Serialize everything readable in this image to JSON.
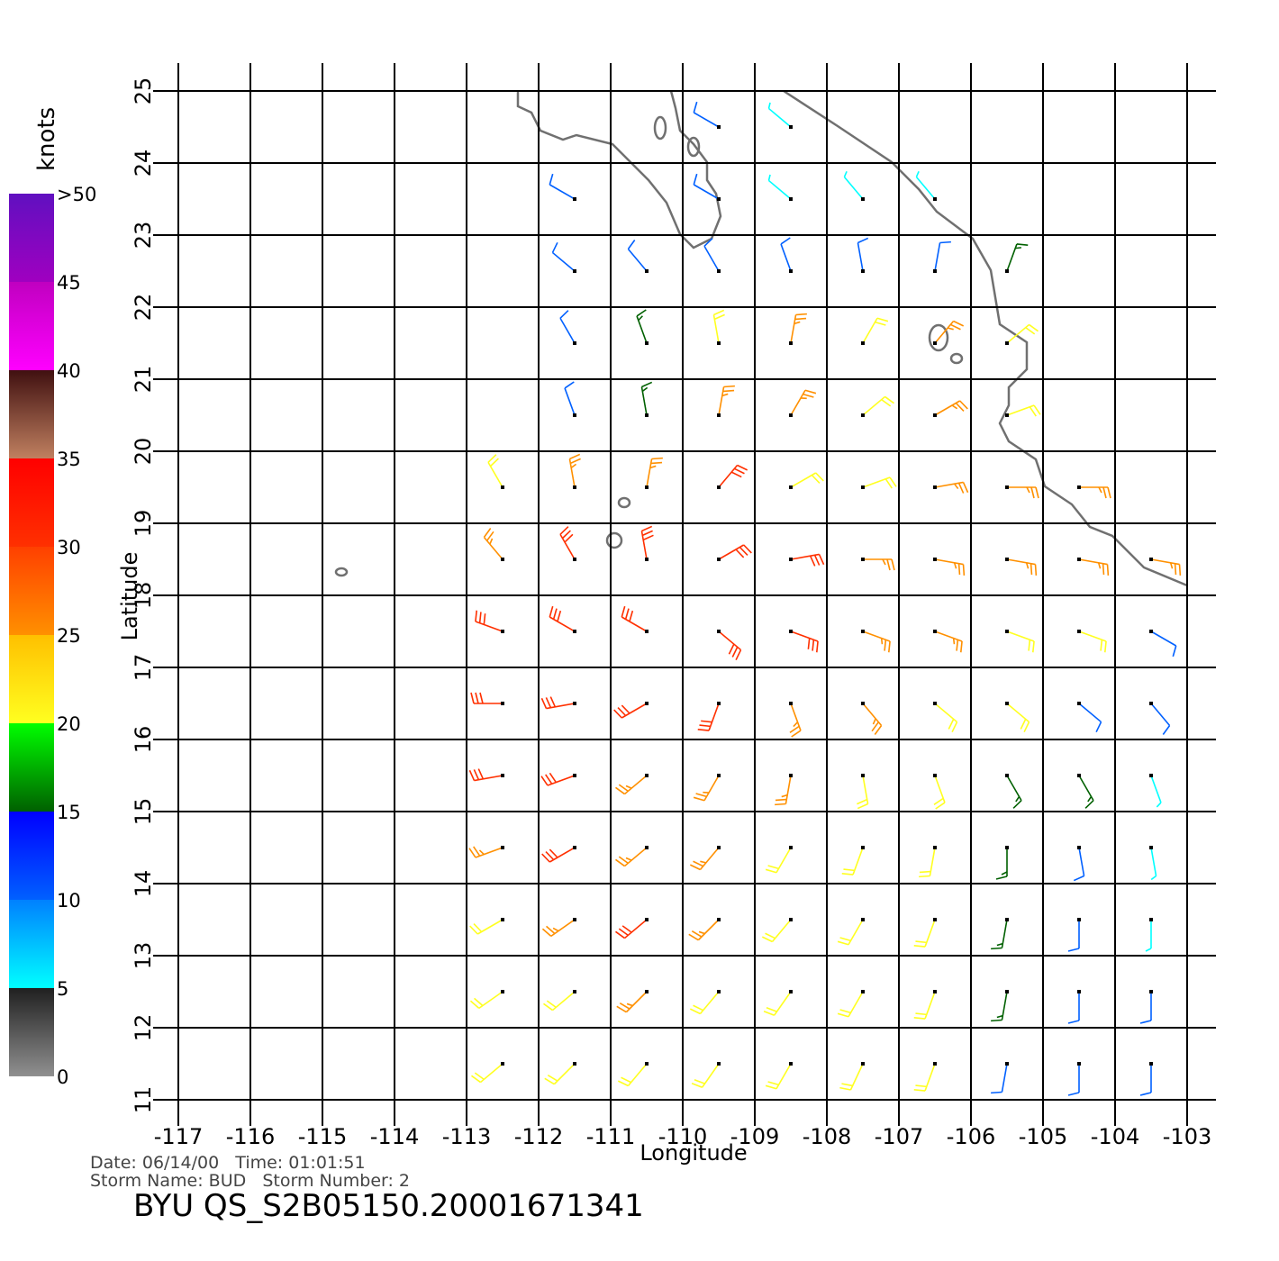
{
  "map": {
    "xlabel": "Longitude",
    "ylabel": "Latitude",
    "xlim": [
      -117,
      -103
    ],
    "ylim": [
      11,
      25
    ],
    "xticks": [
      -117,
      -116,
      -115,
      -114,
      -113,
      -112,
      -111,
      -110,
      -109,
      -108,
      -107,
      -106,
      -105,
      -104,
      -103
    ],
    "yticks": [
      11,
      12,
      13,
      14,
      15,
      16,
      17,
      18,
      19,
      20,
      21,
      22,
      23,
      24,
      25
    ],
    "grid": true,
    "wind": {
      "lat": [
        24.5,
        23.5,
        22.5,
        21.5,
        20.5,
        19.5,
        18.5,
        17.5,
        16.5,
        15.5,
        14.5,
        13.5,
        12.5,
        11.5
      ],
      "lon": [
        -112.5,
        -111.5,
        -110.5,
        -109.5,
        -108.5,
        -107.5,
        -106.5,
        -105.5,
        -104.5,
        -103.5
      ],
      "speed": [
        [
          null,
          null,
          null,
          10,
          6,
          null,
          null,
          null,
          null,
          null
        ],
        [
          null,
          10,
          null,
          12,
          6,
          8,
          8,
          null,
          null,
          null
        ],
        [
          null,
          12,
          12,
          12,
          14,
          12,
          14,
          15,
          null,
          null
        ],
        [
          null,
          12,
          16,
          22,
          28,
          24,
          26,
          20,
          null,
          null
        ],
        [
          null,
          10,
          18,
          26,
          28,
          22,
          26,
          24,
          null,
          null
        ],
        [
          22,
          26,
          28,
          30,
          24,
          24,
          26,
          28,
          28,
          null
        ],
        [
          28,
          30,
          30,
          30,
          30,
          28,
          26,
          28,
          26,
          28
        ],
        [
          30,
          30,
          32,
          30,
          30,
          28,
          28,
          24,
          20,
          12
        ],
        [
          32,
          32,
          30,
          30,
          28,
          26,
          24,
          20,
          12,
          10
        ],
        [
          30,
          30,
          28,
          28,
          26,
          22,
          22,
          18,
          16,
          8
        ],
        [
          28,
          30,
          28,
          26,
          24,
          22,
          22,
          18,
          12,
          8
        ],
        [
          24,
          26,
          30,
          26,
          24,
          22,
          22,
          16,
          10,
          8
        ],
        [
          20,
          24,
          26,
          24,
          22,
          22,
          22,
          18,
          12,
          12
        ],
        [
          20,
          22,
          22,
          22,
          22,
          22,
          22,
          14,
          12,
          12
        ]
      ],
      "direction": [
        [
          null,
          null,
          null,
          300,
          310,
          null,
          null,
          null,
          null,
          null
        ],
        [
          null,
          300,
          null,
          300,
          310,
          320,
          320,
          null,
          null,
          null
        ],
        [
          null,
          310,
          320,
          330,
          340,
          350,
          10,
          20,
          null,
          null
        ],
        [
          null,
          330,
          340,
          350,
          10,
          30,
          40,
          50,
          null,
          null
        ],
        [
          null,
          340,
          350,
          10,
          30,
          50,
          60,
          70,
          null,
          null
        ],
        [
          330,
          350,
          10,
          40,
          60,
          70,
          80,
          90,
          90,
          null
        ],
        [
          320,
          330,
          350,
          60,
          80,
          90,
          100,
          100,
          100,
          100
        ],
        [
          290,
          300,
          300,
          130,
          110,
          110,
          110,
          110,
          110,
          120
        ],
        [
          270,
          260,
          240,
          200,
          160,
          140,
          130,
          130,
          130,
          140
        ],
        [
          260,
          250,
          230,
          210,
          190,
          170,
          160,
          150,
          150,
          160
        ],
        [
          250,
          240,
          230,
          220,
          210,
          200,
          190,
          180,
          170,
          170
        ],
        [
          240,
          235,
          230,
          225,
          220,
          210,
          200,
          190,
          180,
          180
        ],
        [
          235,
          230,
          225,
          220,
          215,
          210,
          200,
          190,
          180,
          180
        ],
        [
          230,
          225,
          220,
          215,
          210,
          205,
          200,
          190,
          180,
          180
        ]
      ]
    },
    "colorbar": {
      "label": "knots",
      "lim": [
        0,
        50
      ],
      "ticks": [
        0,
        5,
        10,
        15,
        20,
        25,
        30,
        35,
        40,
        45,
        {
          "value": 50,
          "label": ">50"
        }
      ],
      "stops": [
        {
          "value": 0,
          "color": "#909090"
        },
        {
          "value": 5,
          "color": "#202020"
        },
        {
          "value": 5,
          "color": "#00ffff"
        },
        {
          "value": 10,
          "color": "#0080ff"
        },
        {
          "value": 10,
          "color": "#0060ff"
        },
        {
          "value": 15,
          "color": "#0000ff"
        },
        {
          "value": 15,
          "color": "#006000"
        },
        {
          "value": 20,
          "color": "#00ff00"
        },
        {
          "value": 20,
          "color": "#ffff20"
        },
        {
          "value": 25,
          "color": "#ffc000"
        },
        {
          "value": 25,
          "color": "#ff9000"
        },
        {
          "value": 30,
          "color": "#ff4000"
        },
        {
          "value": 30,
          "color": "#ff3000"
        },
        {
          "value": 35,
          "color": "#ff0000"
        },
        {
          "value": 35,
          "color": "#c08060"
        },
        {
          "value": 40,
          "color": "#401010"
        },
        {
          "value": 40,
          "color": "#ff00ff"
        },
        {
          "value": 45,
          "color": "#c000c0"
        },
        {
          "value": 45,
          "color": "#a000c0"
        },
        {
          "value": 50,
          "color": "#6010c0"
        }
      ]
    },
    "footer": {
      "date_line": "Date: 06/14/00   Time: 01:01:51",
      "storm_line": "Storm Name: BUD   Storm Number: 2",
      "file": "BYU QS_S2B05150.20001671341"
    }
  }
}
